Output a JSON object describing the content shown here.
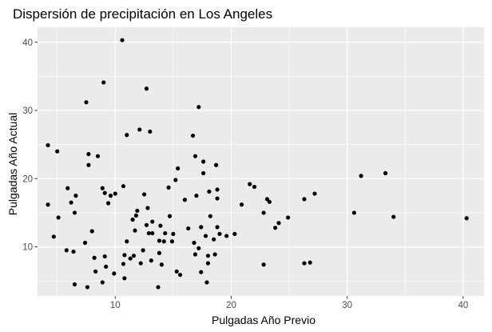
{
  "chart_data": {
    "type": "scatter",
    "title": "Dispersión de precipitación en Los Angeles",
    "xlabel": "Pulgadas Año Previo",
    "ylabel": "Pulgadas Año Actual",
    "xlim": [
      3.3,
      41.8
    ],
    "ylim": [
      2.8,
      42.2
    ],
    "xticks": [
      10,
      20,
      30,
      40
    ],
    "yticks": [
      10,
      20,
      30,
      40
    ],
    "xtick_labels": [
      "10",
      "20",
      "30",
      "40"
    ],
    "ytick_labels": [
      "10",
      "20",
      "30",
      "40"
    ],
    "grid": true,
    "panel_background": "#ebebeb",
    "grid_color": "#ffffff",
    "point_color": "#000000",
    "points": [
      [
        10.6,
        40.3
      ],
      [
        12.7,
        33.2
      ],
      [
        9.0,
        34.1
      ],
      [
        7.5,
        31.2
      ],
      [
        17.2,
        30.5
      ],
      [
        11.0,
        26.4
      ],
      [
        12.1,
        27.2
      ],
      [
        13.0,
        26.9
      ],
      [
        16.7,
        26.3
      ],
      [
        4.2,
        24.9
      ],
      [
        5.0,
        24.0
      ],
      [
        7.7,
        23.6
      ],
      [
        8.5,
        23.3
      ],
      [
        16.9,
        23.3
      ],
      [
        17.6,
        22.5
      ],
      [
        7.7,
        22.0
      ],
      [
        18.7,
        22.0
      ],
      [
        15.4,
        21.5
      ],
      [
        17.6,
        20.8
      ],
      [
        15.2,
        19.8
      ],
      [
        21.6,
        19.2
      ],
      [
        22.0,
        18.8
      ],
      [
        14.6,
        18.7
      ],
      [
        16.0,
        16.9
      ],
      [
        10.7,
        18.9
      ],
      [
        5.9,
        18.6
      ],
      [
        8.9,
        18.6
      ],
      [
        18.8,
        18.4
      ],
      [
        18.1,
        18.1
      ],
      [
        26.3,
        17.0
      ],
      [
        27.2,
        17.8
      ],
      [
        23.1,
        17.0
      ],
      [
        23.3,
        16.6
      ],
      [
        4.2,
        16.2
      ],
      [
        6.6,
        17.5
      ],
      [
        9.1,
        17.9
      ],
      [
        9.6,
        17.5
      ],
      [
        10.0,
        17.8
      ],
      [
        12.5,
        17.7
      ],
      [
        11.9,
        15.3
      ],
      [
        17.0,
        17.5
      ],
      [
        18.8,
        17.1
      ],
      [
        20.9,
        16.2
      ],
      [
        6.2,
        16.5
      ],
      [
        9.4,
        16.4
      ],
      [
        12.8,
        15.7
      ],
      [
        6.5,
        15.0
      ],
      [
        11.8,
        14.6
      ],
      [
        14.7,
        14.5
      ],
      [
        22.8,
        15.0
      ],
      [
        18.2,
        14.5
      ],
      [
        11.5,
        14.0
      ],
      [
        12.7,
        13.2
      ],
      [
        13.2,
        13.7
      ],
      [
        13.9,
        13.1
      ],
      [
        16.3,
        12.7
      ],
      [
        17.4,
        12.9
      ],
      [
        18.8,
        12.9
      ],
      [
        23.8,
        12.8
      ],
      [
        24.1,
        13.5
      ],
      [
        24.9,
        14.3
      ],
      [
        5.1,
        14.3
      ],
      [
        4.7,
        11.5
      ],
      [
        8.0,
        12.3
      ],
      [
        11.7,
        12.4
      ],
      [
        12.9,
        12.0
      ],
      [
        13.2,
        12.0
      ],
      [
        14.3,
        12.0
      ],
      [
        15.0,
        11.9
      ],
      [
        17.8,
        11.6
      ],
      [
        18.5,
        11.1
      ],
      [
        19.0,
        11.9
      ],
      [
        19.6,
        11.6
      ],
      [
        20.3,
        11.9
      ],
      [
        30.6,
        15.0
      ],
      [
        31.2,
        20.4
      ],
      [
        33.3,
        20.8
      ],
      [
        34.0,
        14.4
      ],
      [
        40.3,
        14.2
      ],
      [
        7.4,
        10.6
      ],
      [
        11.0,
        10.8
      ],
      [
        13.8,
        10.9
      ],
      [
        14.2,
        10.8
      ],
      [
        14.9,
        10.8
      ],
      [
        16.8,
        10.6
      ],
      [
        17.2,
        9.8
      ],
      [
        16.9,
        8.9
      ],
      [
        18.0,
        8.7
      ],
      [
        18.6,
        8.9
      ],
      [
        5.8,
        9.5
      ],
      [
        6.4,
        9.3
      ],
      [
        8.2,
        8.4
      ],
      [
        9.1,
        8.6
      ],
      [
        10.8,
        8.8
      ],
      [
        11.3,
        8.3
      ],
      [
        11.6,
        8.7
      ],
      [
        12.4,
        9.5
      ],
      [
        13.8,
        9.1
      ],
      [
        12.2,
        7.6
      ],
      [
        13.1,
        8.0
      ],
      [
        15.3,
        6.4
      ],
      [
        15.6,
        5.9
      ],
      [
        14.0,
        7.4
      ],
      [
        10.7,
        7.5
      ],
      [
        9.2,
        7.1
      ],
      [
        8.3,
        6.4
      ],
      [
        9.9,
        6.1
      ],
      [
        6.5,
        4.5
      ],
      [
        7.6,
        4.1
      ],
      [
        8.9,
        4.8
      ],
      [
        10.8,
        5.4
      ],
      [
        13.7,
        4.1
      ],
      [
        17.9,
        4.8
      ],
      [
        17.4,
        6.3
      ],
      [
        18.0,
        7.6
      ],
      [
        22.8,
        7.4
      ],
      [
        26.3,
        7.6
      ],
      [
        26.8,
        7.7
      ]
    ]
  }
}
